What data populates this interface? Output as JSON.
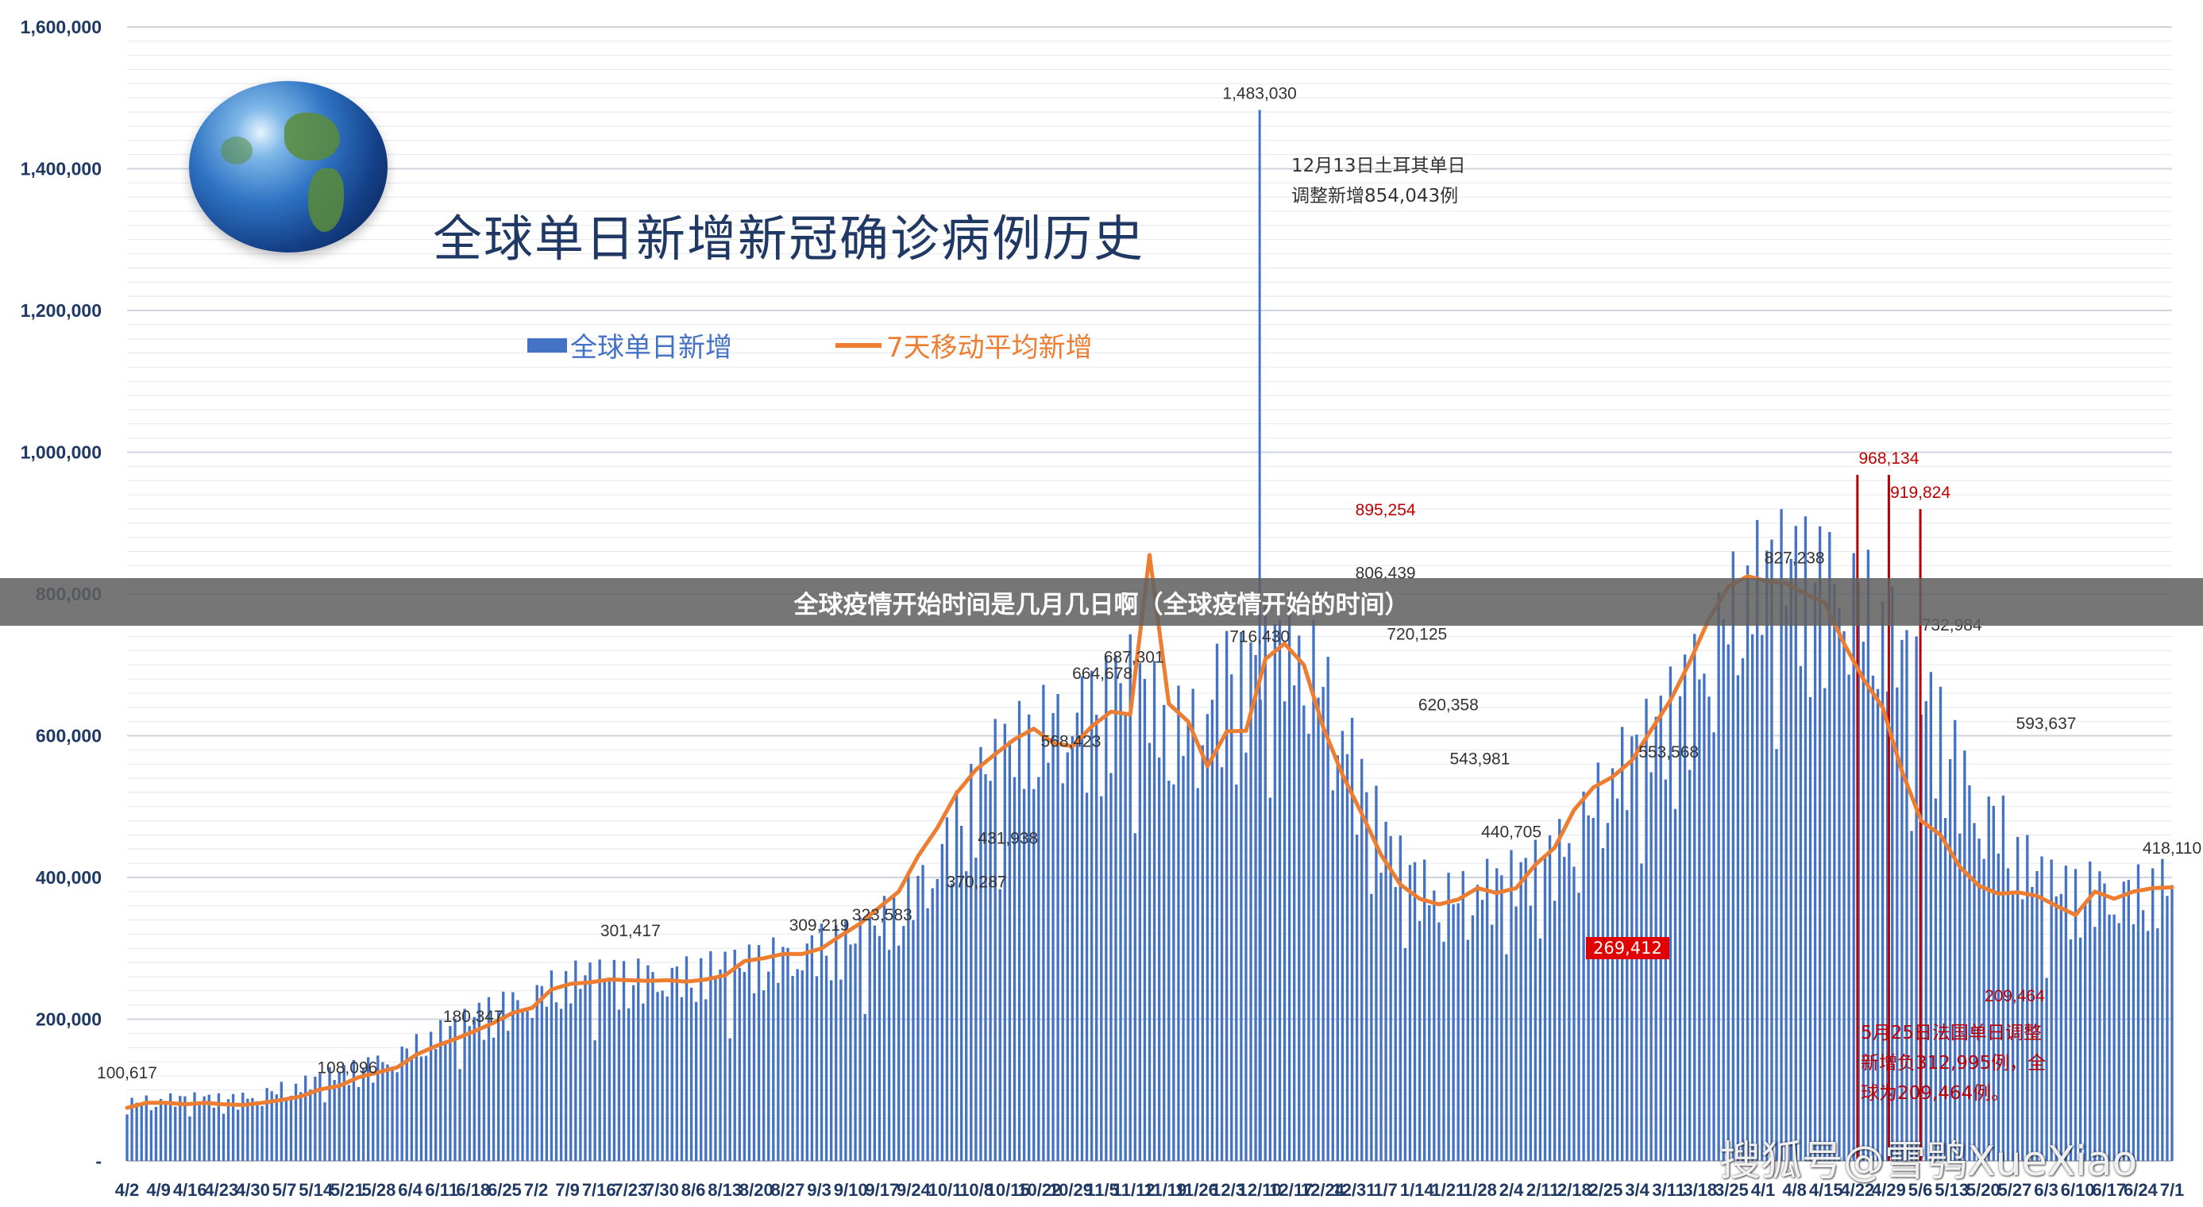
{
  "chart_data": {
    "type": "bar",
    "title": "全球单日新增新冠确诊病例历史",
    "xlabel": "",
    "ylabel": "",
    "ylim": [
      0,
      1600000
    ],
    "y_ticks": [
      0,
      200000,
      400000,
      600000,
      800000,
      1000000,
      1200000,
      1400000,
      1600000
    ],
    "y_tick_labels": [
      "-",
      "200,000",
      "400,000",
      "600,000",
      "800,000",
      "1,000,000",
      "1,200,000",
      "1,400,000",
      "1,600,000"
    ],
    "grid": "horizontal",
    "legend_placement": "top-left",
    "x_tick_labels": [
      "4/2",
      "4/9",
      "4/16",
      "4/23",
      "4/30",
      "5/7",
      "5/14",
      "5/21",
      "5/28",
      "6/4",
      "6/11",
      "6/18",
      "6/25",
      "7/2",
      "7/9",
      "7/16",
      "7/23",
      "7/30",
      "8/6",
      "8/13",
      "8/20",
      "8/27",
      "9/3",
      "9/10",
      "9/17",
      "9/24",
      "10/1",
      "10/8",
      "10/15",
      "10/22",
      "10/29",
      "11/5",
      "11/12",
      "11/19",
      "11/26",
      "12/3",
      "12/10",
      "12/17",
      "12/24",
      "12/31",
      "1/7",
      "1/14",
      "1/21",
      "1/28",
      "2/4",
      "2/11",
      "2/18",
      "2/25",
      "3/4",
      "3/11",
      "3/18",
      "3/25",
      "4/1",
      "4/8",
      "4/15",
      "4/22",
      "4/29",
      "5/6",
      "5/13",
      "5/20",
      "5/27",
      "6/3",
      "6/10",
      "6/17",
      "6/24",
      "7/1"
    ],
    "series": [
      {
        "name": "全球单日新增",
        "kind": "bar",
        "color": "#4472c4",
        "values": [
          80000,
          83000,
          85000,
          86000,
          87000,
          85000,
          87000,
          92000,
          100000,
          105000,
          115000,
          122000,
          130000,
          135000,
          145000,
          160000,
          175000,
          185000,
          200000,
          212000,
          218000,
          228000,
          240000,
          252000,
          256000,
          256000,
          257000,
          255000,
          256000,
          258000,
          265000,
          268000,
          272000,
          282000,
          282000,
          290000,
          300000,
          305000,
          310000,
          330000,
          350000,
          380000,
          420000,
          470000,
          520000,
          560000,
          575000,
          595000,
          605000,
          620000,
          625000,
          648000,
          665000,
          640000,
          600000,
          600000,
          640000,
          680000,
          665000,
          705000,
          720000,
          710000,
          660000,
          605000,
          520000,
          458000,
          410000,
          385000,
          368000,
          365000,
          382000,
          382000,
          395000,
          405000,
          428000,
          450000,
          495000,
          535000,
          560000,
          590000,
          625000,
          660000,
          705000,
          760000,
          800000,
          815000,
          825000,
          818000,
          808000,
          800000,
          780000,
          742000,
          705000,
          650000,
          605000,
          545000,
          485000,
          472000,
          425000,
          398000,
          378000,
          375000,
          380000,
          370000,
          372000,
          380000,
          385000
        ]
      },
      {
        "name": "7天移动平均新增",
        "kind": "line",
        "color": "#ed7d31",
        "values": [
          75000,
          82000,
          82000,
          80000,
          82000,
          80000,
          79000,
          82000,
          86000,
          91000,
          101000,
          106000,
          118000,
          125000,
          132000,
          150000,
          162000,
          172000,
          183000,
          195000,
          209000,
          216000,
          242000,
          250000,
          252000,
          256000,
          255000,
          254000,
          255000,
          253000,
          256000,
          262000,
          282000,
          286000,
          292000,
          292000,
          300000,
          318000,
          335000,
          358000,
          380000,
          430000,
          470000,
          519000,
          552000,
          574000,
          595000,
          610000,
          590000,
          585000,
          613000,
          634000,
          630000,
          855000,
          645000,
          620000,
          557000,
          606000,
          607000,
          708000,
          730000,
          700000,
          612000,
          545000,
          490000,
          432000,
          390000,
          370000,
          362000,
          369000,
          385000,
          378000,
          385000,
          418000,
          442000,
          495000,
          527000,
          542000,
          565000,
          608000,
          650000,
          704000,
          765000,
          810000,
          825000,
          818000,
          815000,
          800000,
          788000,
          730000,
          680000,
          640000,
          550000,
          480000,
          460000,
          415000,
          388000,
          377000,
          379000,
          374000,
          360000,
          347000,
          380000,
          370000,
          380000,
          385000,
          386000
        ]
      }
    ],
    "annotations": [
      {
        "label": "100,617",
        "date": "4/2",
        "value": 100617
      },
      {
        "label": "108,096",
        "date": "5/21",
        "value": 108096
      },
      {
        "label": "180,347",
        "date": "6/18",
        "value": 180347
      },
      {
        "label": "301,417",
        "date": "7/23",
        "value": 301417
      },
      {
        "label": "309,219",
        "date": "9/3",
        "value": 309219
      },
      {
        "label": "323,583",
        "date": "9/17",
        "value": 323583
      },
      {
        "label": "370,287",
        "date": "10/8",
        "value": 370287
      },
      {
        "label": "431,938",
        "date": "10/15",
        "value": 431938
      },
      {
        "label": "568,423",
        "date": "10/29",
        "value": 568423
      },
      {
        "label": "664,678",
        "date": "11/5",
        "value": 664678
      },
      {
        "label": "687,301",
        "date": "11/12",
        "value": 687301
      },
      {
        "label": "716,430",
        "date": "12/10",
        "value": 716430
      },
      {
        "label": "1,483,030",
        "date": "12/10",
        "value": 1483030
      },
      {
        "label": "806,439",
        "date": "1/7",
        "value": 806439
      },
      {
        "label": "895,254",
        "date": "1/7",
        "value": 895254
      },
      {
        "label": "720,125",
        "date": "1/14",
        "value": 720125
      },
      {
        "label": "620,358",
        "date": "1/21",
        "value": 620358
      },
      {
        "label": "543,981",
        "date": "1/28",
        "value": 543981
      },
      {
        "label": "440,705",
        "date": "2/4",
        "value": 440705
      },
      {
        "label": "269,412",
        "date": "2/25",
        "value": 269412
      },
      {
        "label": "553,568",
        "date": "3/11",
        "value": 553568
      },
      {
        "label": "827,238",
        "date": "4/8",
        "value": 827238
      },
      {
        "label": "968,134",
        "date": "4/29",
        "value": 968134
      },
      {
        "label": "919,824",
        "date": "5/6",
        "value": 919824
      },
      {
        "label": "732,984",
        "date": "5/13",
        "value": 732984
      },
      {
        "label": "593,637",
        "date": "6/3",
        "value": 593637
      },
      {
        "label": "209,464",
        "date": "5/27",
        "value": 209464
      },
      {
        "label": "418,110",
        "date": "7/1",
        "value": 418110
      }
    ]
  },
  "legend": {
    "bar_label": "全球单日新增",
    "line_label": "7天移动平均新增"
  },
  "notes": {
    "turkey_line1": "12月13日土耳其单日",
    "turkey_line2": "调整新增854,043例",
    "france_line1": "5月25日法国单日调整",
    "france_line2": "新增负312,995例，全",
    "france_line3": "球为209,464例。",
    "box_269": "269,412"
  },
  "banner": {
    "text": "全球疫情开始时间是几月几日啊（全球疫情开始的时间）"
  },
  "watermark": {
    "text": "搜狐号@雪鸮XueXiao"
  },
  "colors": {
    "bar": "#4472c4",
    "line": "#ed7d31",
    "axis_text": "#1f3864",
    "highlight": "#c00000",
    "grid": "#d9d9d9"
  }
}
